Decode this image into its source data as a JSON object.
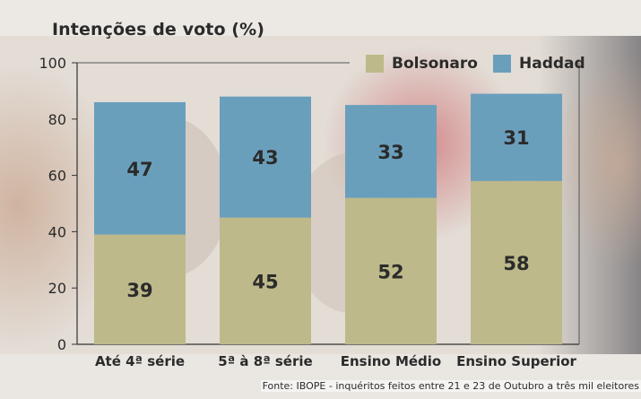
{
  "chart_data": {
    "type": "bar",
    "stacked": true,
    "title": "Intenções de voto (%)",
    "categories": [
      "Até 4ª série",
      "5ª à 8ª série",
      "Ensino Médio",
      "Ensino Superior"
    ],
    "series": [
      {
        "name": "Bolsonaro",
        "values": [
          39,
          45,
          52,
          58
        ],
        "color": "#bdb98a"
      },
      {
        "name": "Haddad",
        "values": [
          47,
          43,
          33,
          31
        ],
        "color": "#6a9fbc"
      }
    ],
    "ylim": [
      0,
      100
    ],
    "yticks": [
      0,
      20,
      40,
      60,
      80,
      100
    ],
    "grid": false,
    "legend": "top-right"
  },
  "source": "Fonte: IBOPE - inquéritos feitos entre 21 e 23 de Outubro a três mil eleitores"
}
